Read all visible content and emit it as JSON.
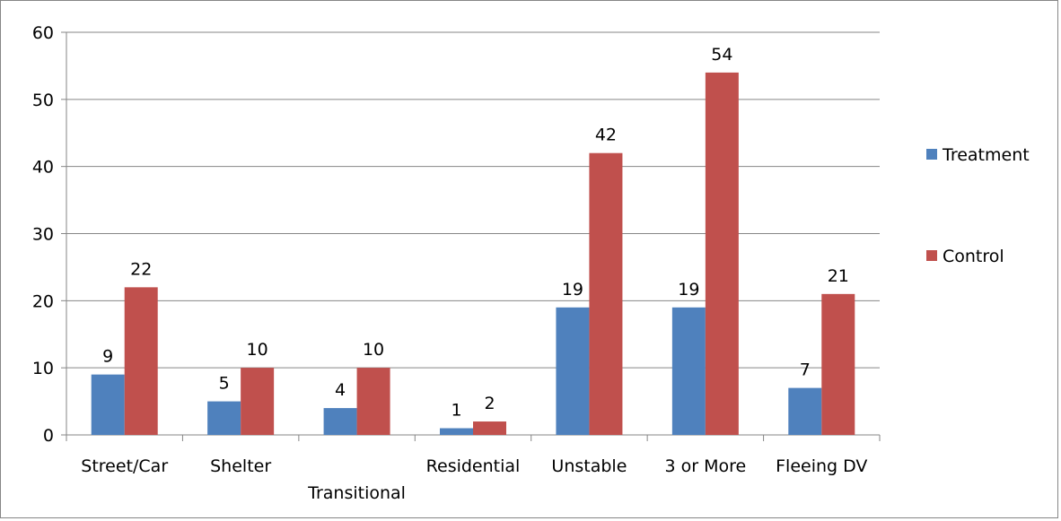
{
  "chart_data": {
    "type": "bar",
    "categories": [
      "Street/Car",
      "Shelter",
      "Transitional",
      "Residential",
      "Unstable",
      "3 or More",
      "Fleeing DV"
    ],
    "category_label_row": [
      0,
      0,
      1,
      0,
      0,
      0,
      0
    ],
    "series": [
      {
        "name": "Treatment",
        "color": "#4F81BD",
        "values": [
          9,
          5,
          4,
          1,
          19,
          19,
          7
        ]
      },
      {
        "name": "Control",
        "color": "#C0504D",
        "values": [
          22,
          10,
          10,
          2,
          42,
          54,
          21
        ]
      }
    ],
    "y_ticks": [
      0,
      10,
      20,
      30,
      40,
      50,
      60
    ],
    "ylim": [
      0,
      60
    ],
    "grid": true,
    "gridline_color": "#868686",
    "legend_position": "right",
    "data_labels": true,
    "title": "",
    "xlabel": "",
    "ylabel": ""
  }
}
